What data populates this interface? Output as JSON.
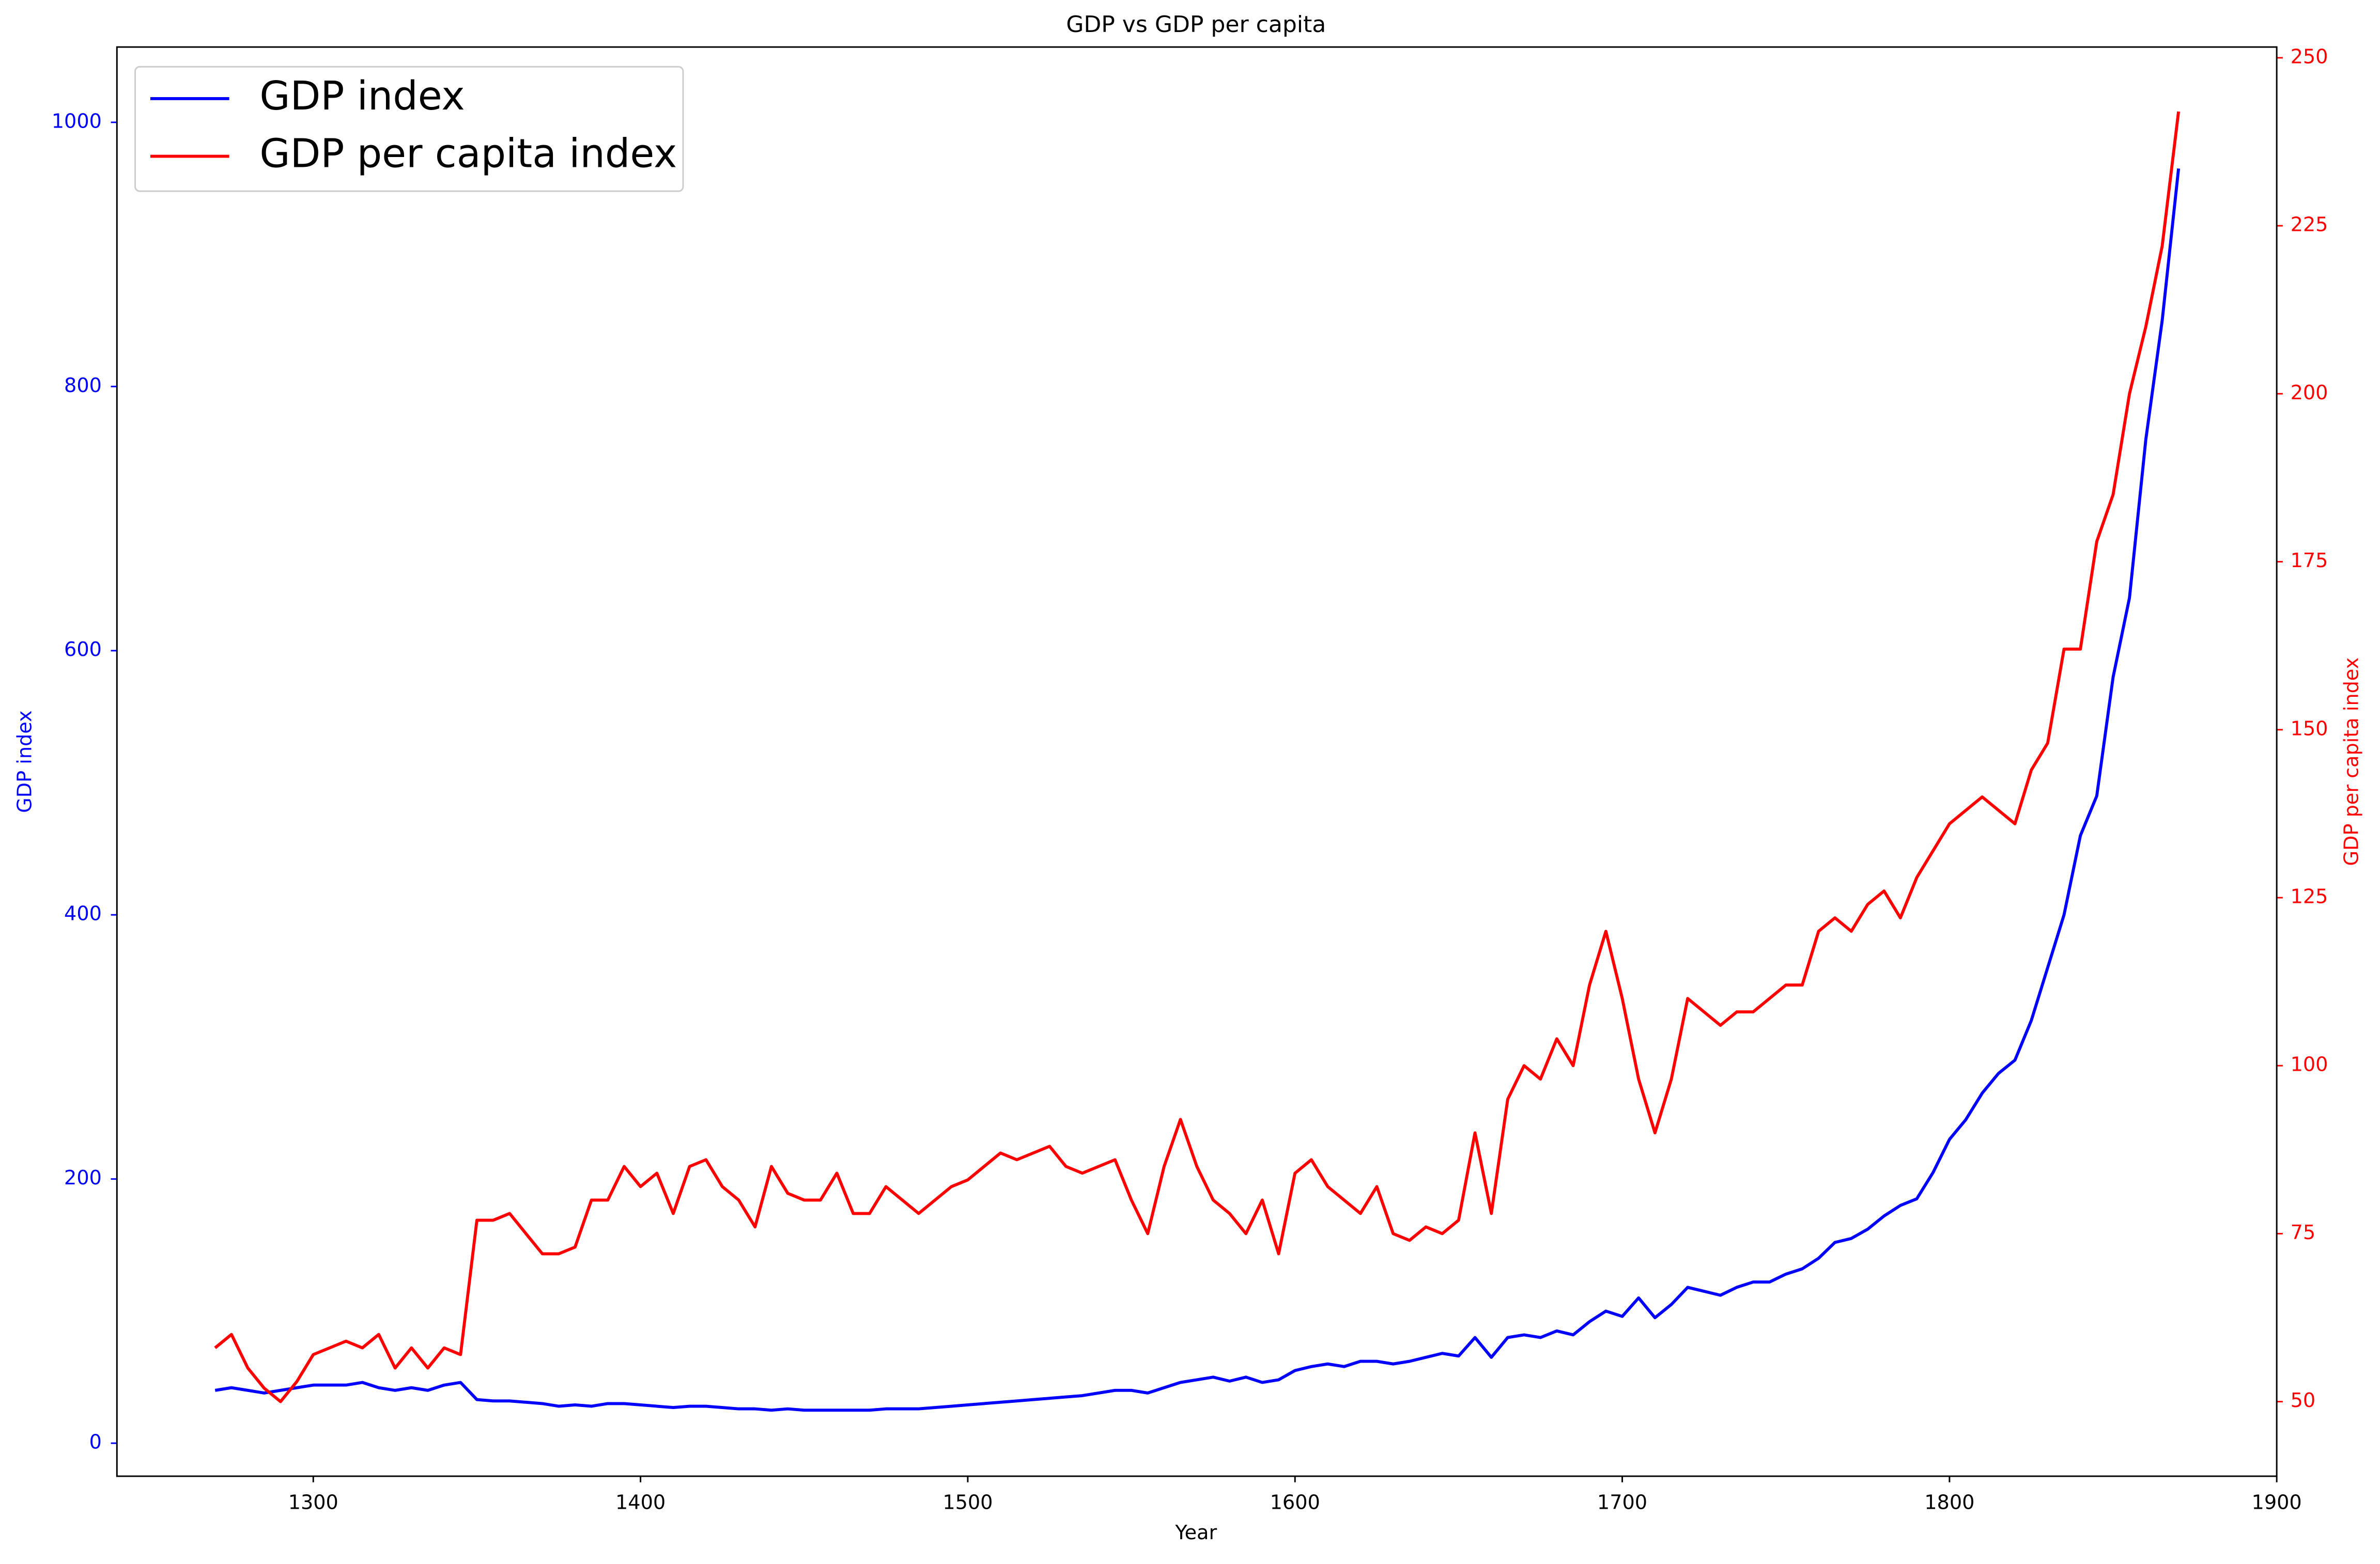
{
  "chart_data": {
    "type": "line",
    "title": "GDP vs GDP per capita",
    "x_label": "Year",
    "y_label": "GDP index",
    "y2_label": "GDP per capita index",
    "x": [
      1270,
      1275,
      1280,
      1285,
      1290,
      1295,
      1300,
      1305,
      1310,
      1315,
      1320,
      1325,
      1330,
      1335,
      1340,
      1345,
      1350,
      1355,
      1360,
      1365,
      1370,
      1375,
      1380,
      1385,
      1390,
      1395,
      1400,
      1405,
      1410,
      1415,
      1420,
      1425,
      1430,
      1435,
      1440,
      1445,
      1450,
      1455,
      1460,
      1465,
      1470,
      1475,
      1480,
      1485,
      1490,
      1495,
      1500,
      1505,
      1510,
      1515,
      1520,
      1525,
      1530,
      1535,
      1540,
      1545,
      1550,
      1555,
      1560,
      1565,
      1570,
      1575,
      1580,
      1585,
      1590,
      1595,
      1600,
      1605,
      1610,
      1615,
      1620,
      1625,
      1630,
      1635,
      1640,
      1645,
      1650,
      1655,
      1660,
      1665,
      1670,
      1675,
      1680,
      1685,
      1690,
      1695,
      1700,
      1705,
      1710,
      1715,
      1720,
      1725,
      1730,
      1735,
      1740,
      1745,
      1750,
      1755,
      1760,
      1765,
      1770,
      1775,
      1780,
      1785,
      1790,
      1795,
      1800,
      1805,
      1810,
      1815,
      1820,
      1825,
      1830,
      1835,
      1840,
      1845,
      1850,
      1855,
      1860,
      1865,
      1870
    ],
    "series": [
      {
        "name": "GDP index",
        "color": "#0000ff",
        "axis": "y",
        "values": [
          40,
          42,
          40,
          38,
          40,
          42,
          44,
          44,
          44,
          46,
          42,
          40,
          42,
          40,
          44,
          46,
          33,
          32,
          32,
          31,
          30,
          28,
          29,
          28,
          30,
          30,
          29,
          28,
          27,
          28,
          28,
          27,
          26,
          26,
          25,
          26,
          25,
          25,
          25,
          25,
          25,
          26,
          26,
          26,
          27,
          28,
          29,
          30,
          31,
          32,
          33,
          34,
          35,
          36,
          38,
          40,
          40,
          38,
          42,
          46,
          48,
          50,
          47,
          50,
          46,
          48,
          55,
          58,
          60,
          58,
          62,
          62,
          60,
          62,
          65,
          68,
          66,
          80,
          65,
          80,
          82,
          80,
          85,
          82,
          92,
          100,
          96,
          110,
          95,
          105,
          118,
          115,
          112,
          118,
          122,
          122,
          128,
          132,
          140,
          152,
          155,
          162,
          172,
          180,
          185,
          205,
          230,
          245,
          265,
          280,
          290,
          320,
          360,
          400,
          460,
          490,
          580,
          640,
          760,
          850,
          965
        ]
      },
      {
        "name": "GDP per capita index",
        "color": "#ff0000",
        "axis": "y2",
        "values": [
          58,
          60,
          55,
          52,
          50,
          53,
          57,
          58,
          59,
          58,
          60,
          55,
          58,
          55,
          58,
          57,
          77,
          77,
          78,
          75,
          72,
          72,
          73,
          80,
          80,
          85,
          82,
          84,
          78,
          85,
          86,
          82,
          80,
          76,
          85,
          81,
          80,
          80,
          84,
          78,
          78,
          82,
          80,
          78,
          80,
          82,
          83,
          85,
          87,
          86,
          87,
          88,
          85,
          84,
          85,
          86,
          80,
          75,
          85,
          92,
          85,
          80,
          78,
          75,
          80,
          72,
          84,
          86,
          82,
          80,
          78,
          82,
          75,
          74,
          76,
          75,
          77,
          90,
          78,
          95,
          100,
          98,
          104,
          100,
          112,
          120,
          110,
          98,
          90,
          98,
          110,
          108,
          106,
          108,
          108,
          110,
          112,
          112,
          120,
          122,
          120,
          124,
          126,
          122,
          128,
          132,
          136,
          138,
          140,
          138,
          136,
          144,
          148,
          162,
          162,
          178,
          185,
          200,
          210,
          222,
          242
        ]
      }
    ],
    "xlim": [
      1240,
      1900
    ],
    "xticks": [
      1300,
      1400,
      1500,
      1600,
      1700,
      1800,
      1900
    ],
    "ylim": [
      -25,
      1057
    ],
    "yticks": [
      0,
      200,
      400,
      600,
      800,
      1000
    ],
    "y2lim": [
      38.9,
      251.6
    ],
    "y2ticks": [
      50,
      75,
      100,
      125,
      150,
      175,
      200,
      225,
      250
    ],
    "legend": "upper left"
  }
}
